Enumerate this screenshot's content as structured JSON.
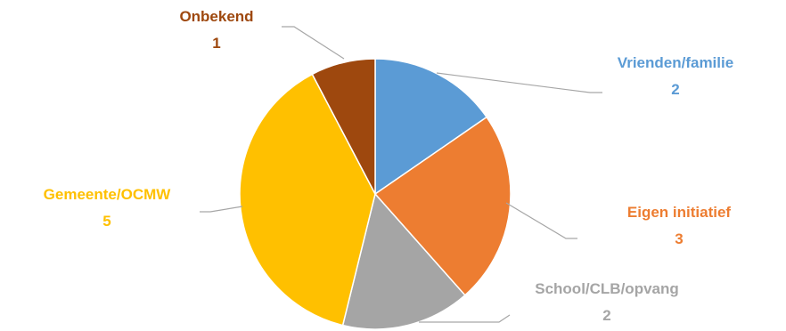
{
  "chart_data": {
    "type": "pie",
    "title": "",
    "slices": [
      {
        "label": "Vrienden/familie",
        "value": 2,
        "color": "#5B9BD5"
      },
      {
        "label": "Eigen initiatief",
        "value": 3,
        "color": "#ED7D31"
      },
      {
        "label": "School/CLB/opvang",
        "value": 2,
        "color": "#A5A5A5"
      },
      {
        "label": "Gemeente/OCMW",
        "value": 5,
        "color": "#FFC000"
      },
      {
        "label": "Onbekend",
        "value": 1,
        "color": "#9E480E"
      }
    ],
    "label_colors": [
      "#5B9BD5",
      "#ED7D31",
      "#A5A5A5",
      "#FFC000",
      "#9E480E"
    ],
    "leader_line_color": "#A6A6A6",
    "data_labels": "outside-with-leader-lines",
    "legend": "none"
  }
}
